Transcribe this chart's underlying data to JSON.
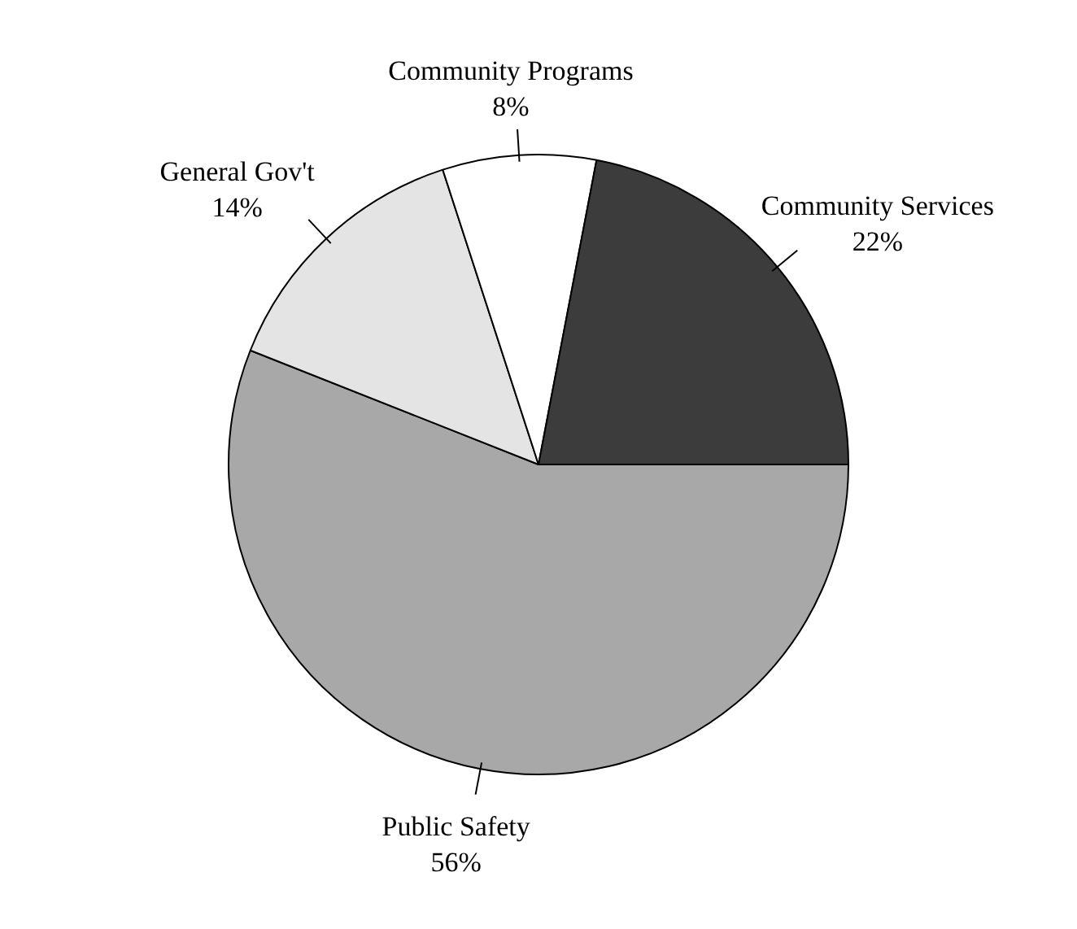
{
  "chart_data": {
    "type": "pie",
    "categories": [
      "Public Safety",
      "General Gov't",
      "Community Programs",
      "Community Services"
    ],
    "values": [
      56,
      14,
      8,
      22
    ],
    "colors": [
      "#a8a8a8",
      "#e4e4e4",
      "#ffffff",
      "#3c3c3c"
    ],
    "value_labels": [
      "56%",
      "14%",
      "8%",
      "22%"
    ]
  }
}
